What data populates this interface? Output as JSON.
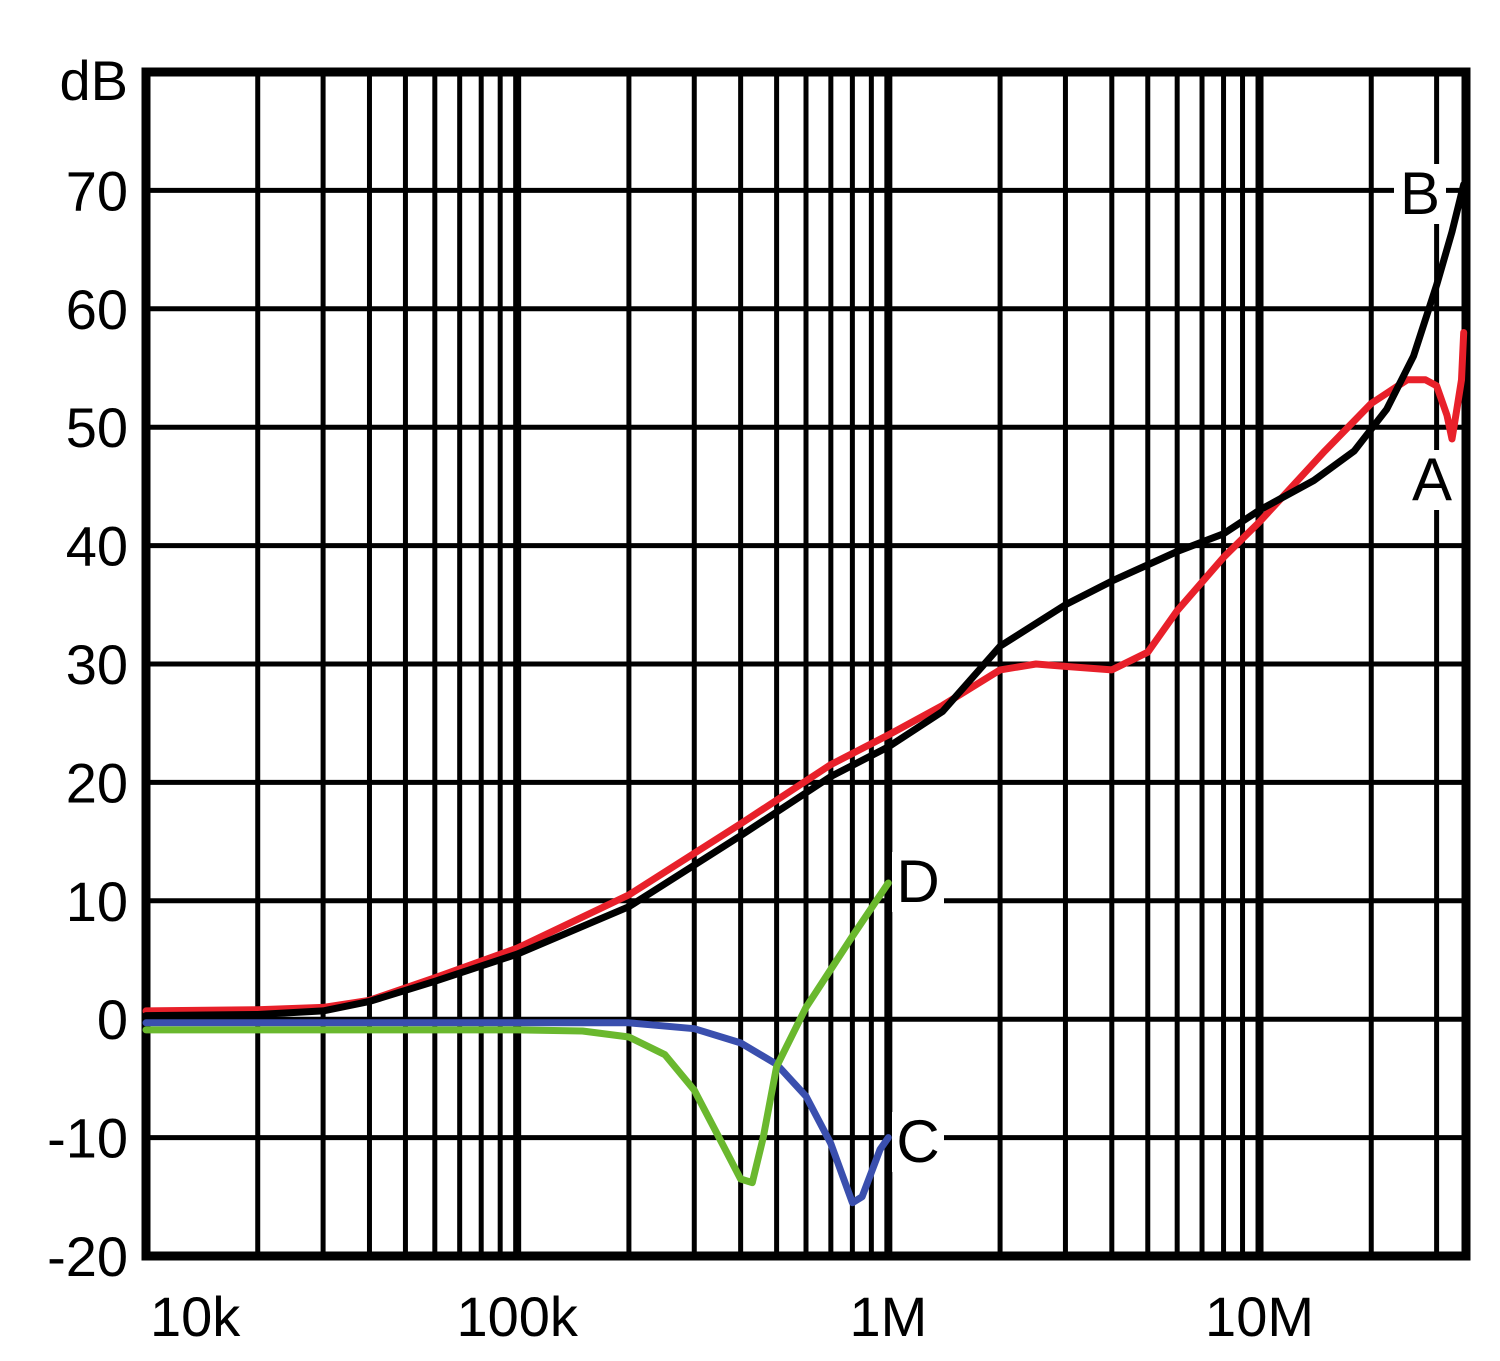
{
  "chart_data": {
    "type": "line",
    "title": "",
    "xlabel": "",
    "ylabel": "dB",
    "x_scale": "log",
    "xlim": [
      10000,
      36000000
    ],
    "ylim": [
      -20,
      80
    ],
    "grid": true,
    "x_ticks": [
      {
        "value": 10000,
        "label": "10k"
      },
      {
        "value": 100000,
        "label": "100k"
      },
      {
        "value": 1000000,
        "label": "1M"
      },
      {
        "value": 10000000,
        "label": "10M"
      }
    ],
    "y_ticks": [
      {
        "value": 70,
        "label": "70"
      },
      {
        "value": 60,
        "label": "60"
      },
      {
        "value": 50,
        "label": "50"
      },
      {
        "value": 40,
        "label": "40"
      },
      {
        "value": 30,
        "label": "30"
      },
      {
        "value": 20,
        "label": "20"
      },
      {
        "value": 10,
        "label": "10"
      },
      {
        "value": 0,
        "label": "0"
      },
      {
        "value": -10,
        "label": "-10"
      },
      {
        "value": -20,
        "label": "-20"
      }
    ],
    "series": [
      {
        "name": "A",
        "color": "#e8202a",
        "points": [
          [
            10000,
            0.7
          ],
          [
            20000,
            0.8
          ],
          [
            30000,
            1.0
          ],
          [
            40000,
            1.6
          ],
          [
            60000,
            3.5
          ],
          [
            100000,
            6.0
          ],
          [
            200000,
            10.5
          ],
          [
            400000,
            16.5
          ],
          [
            700000,
            21.5
          ],
          [
            1000000,
            24.0
          ],
          [
            1400000,
            26.5
          ],
          [
            2000000,
            29.5
          ],
          [
            2500000,
            30.0
          ],
          [
            3000000,
            29.8
          ],
          [
            4000000,
            29.5
          ],
          [
            5000000,
            31.0
          ],
          [
            6000000,
            34.5
          ],
          [
            8000000,
            39.0
          ],
          [
            10000000,
            42.0
          ],
          [
            15000000,
            48.0
          ],
          [
            20000000,
            52.0
          ],
          [
            25000000,
            54.0
          ],
          [
            28000000,
            54.0
          ],
          [
            30000000,
            53.5
          ],
          [
            32000000,
            51.0
          ],
          [
            33000000,
            49.0
          ],
          [
            34000000,
            51.5
          ],
          [
            35000000,
            54.0
          ],
          [
            35500000,
            58.0
          ]
        ]
      },
      {
        "name": "B",
        "color": "#000000",
        "points": [
          [
            10000,
            0.3
          ],
          [
            20000,
            0.4
          ],
          [
            30000,
            0.7
          ],
          [
            40000,
            1.5
          ],
          [
            60000,
            3.2
          ],
          [
            100000,
            5.5
          ],
          [
            200000,
            9.5
          ],
          [
            400000,
            15.5
          ],
          [
            700000,
            20.5
          ],
          [
            1000000,
            23.0
          ],
          [
            1400000,
            26.0
          ],
          [
            2000000,
            31.5
          ],
          [
            3000000,
            35.0
          ],
          [
            4000000,
            37.0
          ],
          [
            6000000,
            39.5
          ],
          [
            8000000,
            41.0
          ],
          [
            10000000,
            43.0
          ],
          [
            14000000,
            45.5
          ],
          [
            18000000,
            48.0
          ],
          [
            22000000,
            51.5
          ],
          [
            26000000,
            56.0
          ],
          [
            30000000,
            62.0
          ],
          [
            33000000,
            66.5
          ],
          [
            35500000,
            70.5
          ]
        ]
      },
      {
        "name": "C",
        "color": "#3a4fae",
        "points": [
          [
            10000,
            -0.3
          ],
          [
            100000,
            -0.3
          ],
          [
            200000,
            -0.3
          ],
          [
            300000,
            -0.8
          ],
          [
            400000,
            -2.0
          ],
          [
            500000,
            -3.8
          ],
          [
            600000,
            -6.5
          ],
          [
            700000,
            -10.5
          ],
          [
            800000,
            -15.5
          ],
          [
            850000,
            -15.0
          ],
          [
            950000,
            -11.0
          ],
          [
            1000000,
            -10.0
          ]
        ]
      },
      {
        "name": "D",
        "color": "#6ab82e",
        "points": [
          [
            10000,
            -0.9
          ],
          [
            100000,
            -0.9
          ],
          [
            150000,
            -1.0
          ],
          [
            200000,
            -1.5
          ],
          [
            250000,
            -3.0
          ],
          [
            300000,
            -6.0
          ],
          [
            350000,
            -10.0
          ],
          [
            400000,
            -13.5
          ],
          [
            430000,
            -13.8
          ],
          [
            460000,
            -10.0
          ],
          [
            500000,
            -4.0
          ],
          [
            600000,
            1.0
          ],
          [
            800000,
            7.0
          ],
          [
            1000000,
            11.5
          ]
        ]
      }
    ]
  }
}
